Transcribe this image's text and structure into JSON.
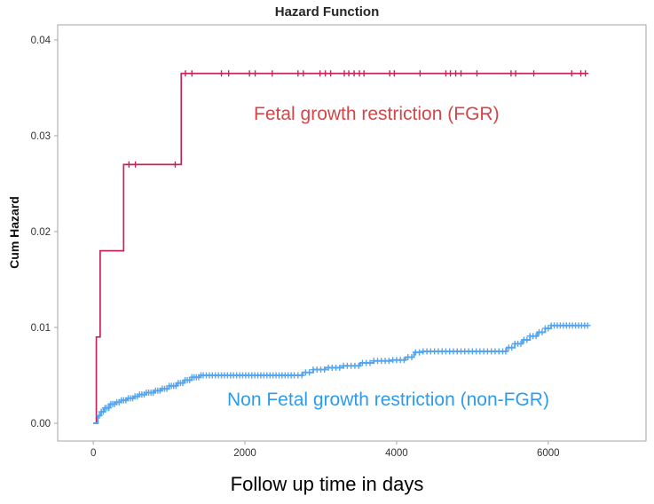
{
  "chart_data": {
    "type": "line",
    "subtype": "step-function-cumulative-hazard",
    "title": "Hazard Function",
    "xlabel": "Follow up time in days",
    "ylabel": "Cum Hazard",
    "xlim": [
      -470,
      7290
    ],
    "ylim": [
      -0.00185,
      0.04157
    ],
    "x_ticks": [
      "0",
      "2000",
      "4000",
      "6000"
    ],
    "y_ticks": [
      "0.00",
      "0.01",
      "0.02",
      "0.03",
      "0.04"
    ],
    "grid": false,
    "frame_color": "#A6A6A6",
    "background": "#FFFFFF",
    "series": [
      {
        "id": "fgr",
        "name": "Fetal growth restriction (FGR)",
        "color": "#C1275E",
        "width": 1.7,
        "points": [
          [
            0,
            0
          ],
          [
            40,
            0.009
          ],
          [
            90,
            0.018
          ],
          [
            400,
            0.027
          ],
          [
            1160,
            0.0365
          ],
          [
            6500,
            0.0365
          ]
        ],
        "censor_times": [
          470,
          555,
          1080,
          1215,
          1300,
          1690,
          1785,
          2060,
          2135,
          2360,
          2700,
          2770,
          2990,
          3060,
          3130,
          3310,
          3370,
          3440,
          3510,
          3570,
          3910,
          3970,
          4310,
          4650,
          4710,
          4780,
          4850,
          5060,
          5510,
          5570,
          5810,
          6310,
          6430,
          6490
        ]
      },
      {
        "id": "non_fgr",
        "name": "Non Fetal growth restriction (non-FGR)",
        "color": "#56A5EE",
        "width": 2,
        "points": [
          [
            0,
            0
          ],
          [
            60,
            0.0008
          ],
          [
            100,
            0.0012
          ],
          [
            150,
            0.0016
          ],
          [
            210,
            0.002
          ],
          [
            290,
            0.0022
          ],
          [
            370,
            0.0024
          ],
          [
            450,
            0.0026
          ],
          [
            530,
            0.0028
          ],
          [
            610,
            0.003
          ],
          [
            700,
            0.0032
          ],
          [
            800,
            0.0034
          ],
          [
            900,
            0.0036
          ],
          [
            1000,
            0.0039
          ],
          [
            1100,
            0.0042
          ],
          [
            1200,
            0.0045
          ],
          [
            1300,
            0.0048
          ],
          [
            1400,
            0.005
          ],
          [
            2620,
            0.005
          ],
          [
            2760,
            0.0053
          ],
          [
            2900,
            0.0056
          ],
          [
            3060,
            0.0058
          ],
          [
            3300,
            0.006
          ],
          [
            3520,
            0.0063
          ],
          [
            3700,
            0.0065
          ],
          [
            3950,
            0.0066
          ],
          [
            4120,
            0.0069
          ],
          [
            4230,
            0.0074
          ],
          [
            4350,
            0.0075
          ],
          [
            5320,
            0.0075
          ],
          [
            5450,
            0.0079
          ],
          [
            5560,
            0.0083
          ],
          [
            5660,
            0.0087
          ],
          [
            5760,
            0.0091
          ],
          [
            5860,
            0.0095
          ],
          [
            5960,
            0.0099
          ],
          [
            6040,
            0.0102
          ],
          [
            6530,
            0.0102
          ]
        ],
        "censor_times": [
          80,
          105,
          130,
          155,
          180,
          205,
          230,
          255,
          280,
          310,
          340,
          370,
          400,
          430,
          460,
          490,
          520,
          550,
          580,
          610,
          640,
          670,
          700,
          730,
          760,
          790,
          820,
          850,
          880,
          910,
          940,
          970,
          1000,
          1030,
          1060,
          1090,
          1120,
          1150,
          1180,
          1210,
          1240,
          1270,
          1300,
          1330,
          1360,
          1390,
          1420,
          1450,
          1490,
          1530,
          1570,
          1610,
          1650,
          1690,
          1730,
          1770,
          1810,
          1850,
          1890,
          1930,
          1970,
          2010,
          2050,
          2090,
          2130,
          2170,
          2210,
          2250,
          2290,
          2330,
          2370,
          2410,
          2450,
          2490,
          2530,
          2570,
          2610,
          2650,
          2700,
          2750,
          2800,
          2850,
          2900,
          2950,
          3000,
          3050,
          3100,
          3150,
          3200,
          3250,
          3300,
          3350,
          3400,
          3450,
          3500,
          3550,
          3600,
          3650,
          3700,
          3750,
          3800,
          3850,
          3900,
          3950,
          4000,
          4050,
          4100,
          4150,
          4200,
          4250,
          4300,
          4350,
          4400,
          4450,
          4500,
          4550,
          4600,
          4650,
          4700,
          4750,
          4800,
          4850,
          4900,
          4950,
          5000,
          5050,
          5100,
          5150,
          5200,
          5250,
          5300,
          5350,
          5400,
          5440,
          5480,
          5520,
          5560,
          5600,
          5640,
          5680,
          5720,
          5760,
          5800,
          5840,
          5880,
          5920,
          5960,
          6000,
          6040,
          6080,
          6120,
          6160,
          6200,
          6240,
          6280,
          6320,
          6360,
          6400,
          6440,
          6480,
          6520
        ]
      }
    ],
    "annotations": [
      {
        "text": "Fetal growth restriction (FGR)",
        "color": "#D0484A"
      },
      {
        "text": "Non Fetal growth restriction (non-FGR)",
        "color": "#2F9BEB"
      }
    ],
    "legend_position": "in-plot annotations"
  }
}
